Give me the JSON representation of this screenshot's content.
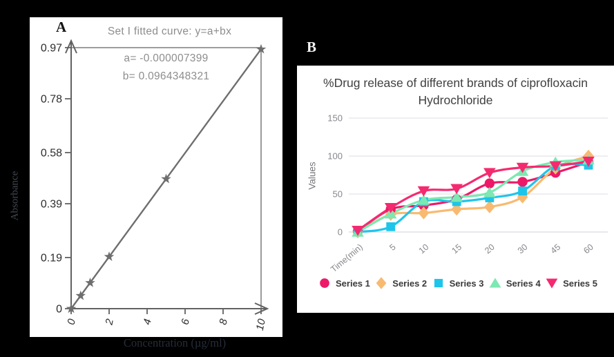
{
  "colors": {
    "background": "#000000",
    "card": "#ffffff",
    "panel_a_plot": "#6e6e6e",
    "panel_a_frame": "#8f8f8f",
    "panel_a_text": "#8d8d8d",
    "panel_a_tick_text": "#2d2d2d",
    "panel_b_grid": "#e4e4ea",
    "panel_b_axis_text": "#87878d",
    "legend_text": "#3a3a3a"
  },
  "panel_a": {
    "label": "A"
  },
  "panel_b": {
    "label": "B"
  },
  "chart_data": [
    {
      "type": "scatter",
      "panel": "A",
      "title": "Set I fitted curve: y=a+bx",
      "annotations": [
        "a= -0.000007399",
        "b= 0.0964348321"
      ],
      "fit": {
        "a": -7.399e-06,
        "b": 0.0964348321
      },
      "xlabel": "Concentration (µg/ml)",
      "ylabel": "Absorbance",
      "x": [
        0,
        0.5,
        1,
        2,
        5,
        10
      ],
      "y": [
        0,
        0.048,
        0.096,
        0.193,
        0.482,
        0.964
      ],
      "x_ticks": [
        0,
        2,
        4,
        6,
        8,
        10
      ],
      "y_ticks": [
        0,
        0.19,
        0.39,
        0.58,
        0.78,
        0.97
      ],
      "xlim": [
        0,
        10
      ],
      "ylim": [
        0,
        0.97
      ],
      "marker": "star",
      "color": "#6e6e6e",
      "grid": false,
      "legend_position": "none"
    },
    {
      "type": "line",
      "panel": "B",
      "title": "%Drug release of different brands of ciprofloxacin Hydrochloride",
      "xlabel": "",
      "ylabel": "Values",
      "categories": [
        "Time(min)",
        "5",
        "10",
        "15",
        "20",
        "30",
        "45",
        "60"
      ],
      "y_ticks": [
        0,
        50,
        100,
        150
      ],
      "ylim": [
        0,
        150
      ],
      "grid": true,
      "legend_position": "bottom",
      "series": [
        {
          "name": "Series 1",
          "marker": "circle",
          "color": "#ED1968",
          "values": [
            1,
            30,
            35,
            43,
            64,
            66,
            78,
            92
          ]
        },
        {
          "name": "Series 2",
          "marker": "diamond",
          "color": "#F8BA71",
          "values": [
            0,
            23,
            25,
            30,
            33,
            46,
            84,
            100
          ]
        },
        {
          "name": "Series 3",
          "marker": "square",
          "color": "#1EC5EA",
          "values": [
            0,
            7,
            40,
            40,
            45,
            54,
            87,
            88
          ]
        },
        {
          "name": "Series 4",
          "marker": "triangle-up",
          "color": "#7CE8B2",
          "values": [
            0,
            24,
            42,
            46,
            52,
            80,
            92,
            95
          ]
        },
        {
          "name": "Series 5",
          "marker": "triangle-down",
          "color": "#F42A70",
          "values": [
            2,
            32,
            54,
            57,
            78,
            85,
            87,
            93
          ]
        }
      ]
    }
  ]
}
